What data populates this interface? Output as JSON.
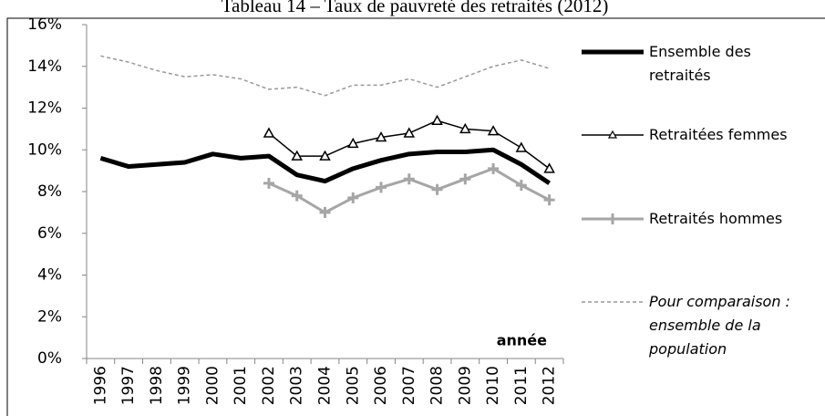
{
  "chart_data": {
    "type": "line",
    "title": "Tableau 14 – Taux de pauvreté des retraités (2012)",
    "annotation": "année",
    "x": [
      1996,
      1997,
      1998,
      1999,
      2000,
      2001,
      2002,
      2003,
      2004,
      2005,
      2006,
      2007,
      2008,
      2009,
      2010,
      2011,
      2012
    ],
    "ylim": [
      0,
      16
    ],
    "yticks": [
      {
        "value": 0,
        "label": "0%"
      },
      {
        "value": 2,
        "label": "2%"
      },
      {
        "value": 4,
        "label": "4%"
      },
      {
        "value": 6,
        "label": "6%"
      },
      {
        "value": 8,
        "label": "8%"
      },
      {
        "value": 10,
        "label": "10%"
      },
      {
        "value": 12,
        "label": "12%"
      },
      {
        "value": 14,
        "label": "14%"
      },
      {
        "value": 16,
        "label": "16%"
      }
    ],
    "series": [
      {
        "name": "Ensemble des retraités",
        "color": "#000000",
        "marker": "none",
        "dashed": false,
        "values": [
          9.6,
          9.2,
          9.3,
          9.4,
          9.8,
          9.6,
          9.7,
          8.8,
          8.5,
          9.1,
          9.5,
          9.8,
          9.9,
          9.9,
          10.0,
          9.3,
          8.4
        ]
      },
      {
        "name": "Retraitées femmes",
        "color": "#000000",
        "marker": "triangle",
        "dashed": false,
        "values": [
          null,
          null,
          null,
          null,
          null,
          null,
          10.8,
          9.7,
          9.7,
          10.3,
          10.6,
          10.8,
          11.4,
          11.0,
          10.9,
          10.1,
          9.1
        ]
      },
      {
        "name": "Retraités hommes",
        "color": "#a6a6a6",
        "marker": "plus",
        "dashed": false,
        "values": [
          null,
          null,
          null,
          null,
          null,
          null,
          8.4,
          7.8,
          7.0,
          7.7,
          8.2,
          8.6,
          8.1,
          8.6,
          9.1,
          8.3,
          7.6
        ]
      },
      {
        "name": "Pour comparaison : ensemble de la population",
        "color": "#999999",
        "marker": "none",
        "dashed": true,
        "values": [
          14.5,
          14.2,
          13.8,
          13.5,
          13.6,
          13.4,
          12.9,
          13.0,
          12.6,
          13.1,
          13.1,
          13.4,
          13.0,
          13.5,
          14.0,
          14.3,
          13.9
        ]
      }
    ]
  }
}
